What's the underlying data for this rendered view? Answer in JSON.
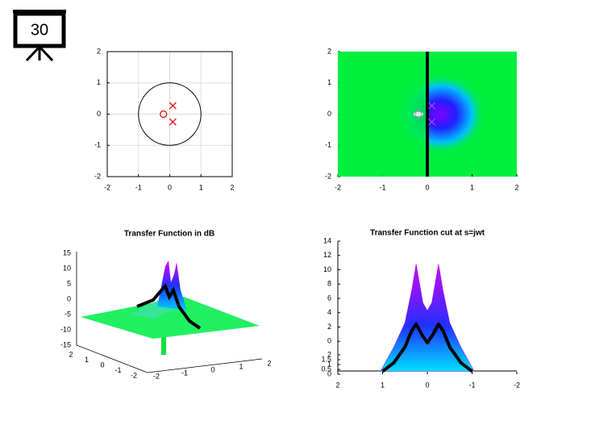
{
  "slide_number": 30,
  "chart_data": [
    {
      "type": "scatter",
      "xlim": [
        -2,
        2
      ],
      "ylim": [
        -2,
        2
      ],
      "xticks": [
        -2,
        -1,
        0,
        1,
        2
      ],
      "yticks": [
        -2,
        -1,
        0,
        1,
        2
      ],
      "grid": true,
      "series": [
        {
          "marker": "o",
          "color": "#e00000",
          "x": [
            -0.2
          ],
          "values": [
            0
          ]
        },
        {
          "marker": "x",
          "color": "#e00000",
          "x": [
            0.1,
            0.1
          ],
          "values": [
            0.27,
            -0.25
          ]
        }
      ]
    },
    {
      "type": "heatmap",
      "xlim": [
        -2,
        2
      ],
      "ylim": [
        -2,
        2
      ],
      "xticks": [
        -2,
        -1,
        0,
        1,
        2
      ],
      "yticks": [
        -2,
        -1,
        0,
        1,
        2
      ],
      "color": "#00f040",
      "series": [
        {
          "marker": "o",
          "color": "#ff40ff",
          "x": [
            -0.2
          ],
          "values": [
            0
          ]
        },
        {
          "marker": "x",
          "color": "#ff40ff",
          "x": [
            0.1,
            0.1
          ],
          "values": [
            0.27,
            -0.25
          ]
        }
      ]
    },
    {
      "type": "surface3d",
      "title": "Transfer Function in dB",
      "zticks": [
        15,
        10,
        5,
        0,
        -5,
        -10,
        -15
      ],
      "yticks": [
        2,
        1,
        0,
        -1,
        -2
      ],
      "xticks": [
        -2,
        -1,
        0,
        1,
        2
      ]
    },
    {
      "type": "line",
      "title": "Transfer Function cut at s=jwt",
      "xlim": [
        2,
        -2
      ],
      "ylim": [
        -4.6,
        14
      ],
      "xticks": [
        2,
        1,
        0,
        -1,
        -2
      ],
      "yticks": [
        14,
        12,
        10,
        8,
        6,
        4,
        2,
        0
      ],
      "y2lim": [
        0,
        13.75
      ],
      "y2ticks": [
        2,
        1.5,
        1,
        0.5,
        0
      ],
      "series": [
        {
          "color": "#000000",
          "x": [
            1,
            0.75,
            0.5,
            0.35,
            0.25,
            0.12,
            0,
            -0.12,
            -0.25,
            -0.35,
            -0.5,
            -0.75,
            -1
          ],
          "values": [
            -4.2,
            -3.0,
            -0.8,
            1.5,
            2.4,
            0.9,
            -0.2,
            0.9,
            2.4,
            1.5,
            -0.8,
            -3.0,
            -4.2
          ]
        },
        {
          "color": "#a000e0",
          "x": [
            1.05,
            0.75,
            0.5,
            0.35,
            0.25,
            0.1,
            0,
            -0.1,
            -0.25,
            -0.35,
            -0.5,
            -0.75,
            -1.05
          ],
          "values": [
            -4.2,
            -0.8,
            2.6,
            7.1,
            10.8,
            5.4,
            4.3,
            5.4,
            10.8,
            7.1,
            2.6,
            -0.8,
            -4.2
          ]
        }
      ]
    }
  ]
}
